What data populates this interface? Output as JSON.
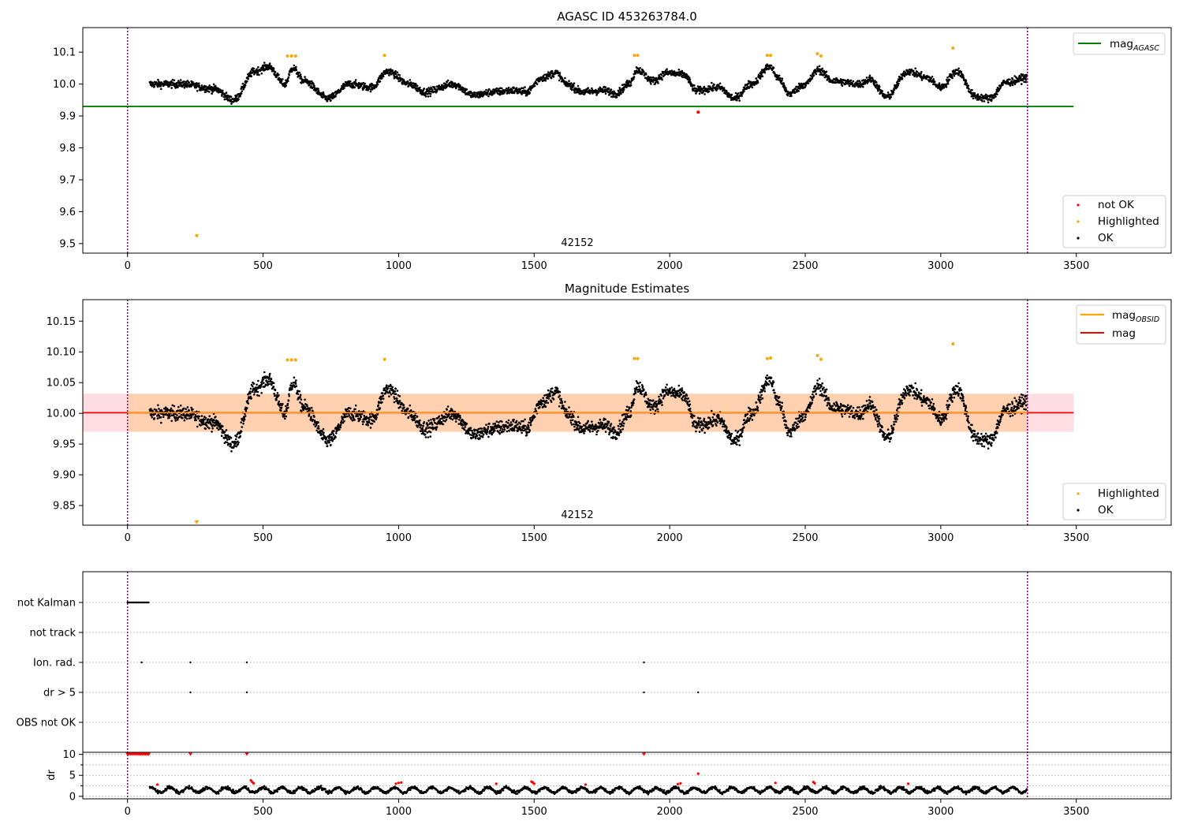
{
  "chart_data": [
    {
      "id": "top",
      "type": "scatter",
      "title": "AGASC ID 453263784.0",
      "xlabel": "",
      "ylabel": "",
      "xlim": [
        -165,
        3850
      ],
      "ylim": [
        9.47,
        10.177
      ],
      "xticks": [
        0,
        500,
        1000,
        1500,
        2000,
        2500,
        3000,
        3500
      ],
      "yticks": [
        9.5,
        9.6,
        9.7,
        9.8,
        9.9,
        10.0,
        10.1
      ],
      "ytick_labels": [
        "9.5",
        "9.6",
        "9.7",
        "9.8",
        "9.9",
        "10.0",
        "10.1"
      ],
      "obsid_annotation": "42152",
      "obs_bounds": [
        0,
        3320
      ],
      "reference_line": {
        "name": "mag",
        "subscript": "AGASC",
        "value": 9.93,
        "x_range": [
          -165,
          3490
        ],
        "color": "#008000"
      },
      "legend_lines": [
        {
          "label": "mag",
          "sub": "AGASC",
          "color": "#008000"
        }
      ],
      "legend_points": [
        {
          "label": "not OK",
          "color": "#ff0000"
        },
        {
          "label": "Highlighted",
          "color": "#ffa500"
        },
        {
          "label": "OK",
          "color": "#000000"
        }
      ],
      "series_description": "OK points (black), ~3200 samples, mag oscillating between ~9.93 and ~10.07 over x 80–3320",
      "highlighted_points": [
        [
          255,
          9.525
        ],
        [
          590,
          10.088
        ],
        [
          605,
          10.088
        ],
        [
          620,
          10.088
        ],
        [
          948,
          10.09
        ],
        [
          1870,
          10.09
        ],
        [
          1882,
          10.09
        ],
        [
          2360,
          10.09
        ],
        [
          2372,
          10.09
        ],
        [
          2545,
          10.095
        ],
        [
          2558,
          10.088
        ],
        [
          3045,
          10.113
        ]
      ],
      "not_ok_points": [
        [
          2105,
          9.912
        ]
      ]
    },
    {
      "id": "mid",
      "type": "scatter",
      "title": "Magnitude Estimates",
      "xlabel": "",
      "ylabel": "",
      "xlim": [
        -165,
        3850
      ],
      "ylim": [
        9.818,
        10.185
      ],
      "xticks": [
        0,
        500,
        1000,
        1500,
        2000,
        2500,
        3000,
        3500
      ],
      "yticks": [
        9.85,
        9.9,
        9.95,
        10.0,
        10.05,
        10.1,
        10.15
      ],
      "ytick_labels": [
        "9.85",
        "9.90",
        "9.95",
        "10.00",
        "10.05",
        "10.10",
        "10.15"
      ],
      "obsid_annotation": "42152",
      "obs_bounds": [
        0,
        3320
      ],
      "mag": 10.001,
      "mag_band": [
        9.97,
        10.032
      ],
      "mag_band_color": "#ffb6c1",
      "mag_obsid_band": [
        9.97,
        10.032
      ],
      "mag_obsid_band_color": "#ffa500",
      "legend_lines": [
        {
          "label": "mag",
          "sub": "OBSID",
          "color": "#ffa500"
        },
        {
          "label": "mag",
          "sub": "",
          "color": "#ff0000"
        }
      ],
      "legend_points": [
        {
          "label": "Highlighted",
          "color": "#ffa500"
        },
        {
          "label": "OK",
          "color": "#000000"
        }
      ],
      "highlighted_points": [
        [
          590,
          10.087
        ],
        [
          605,
          10.087
        ],
        [
          620,
          10.087
        ],
        [
          948,
          10.088
        ],
        [
          1870,
          10.089
        ],
        [
          1882,
          10.089
        ],
        [
          2360,
          10.089
        ],
        [
          2372,
          10.09
        ],
        [
          2545,
          10.094
        ],
        [
          2558,
          10.088
        ],
        [
          3045,
          10.113
        ]
      ],
      "out_of_range_markers": [
        [
          255,
          9.822
        ]
      ]
    },
    {
      "id": "flags",
      "type": "scatter",
      "title": "",
      "xlim": [
        -165,
        3850
      ],
      "categories": [
        "not Kalman",
        "not track",
        "Ion. rad.",
        "dr > 5",
        "OBS not OK"
      ],
      "flag_points": {
        "not Kalman": [
          0,
          8,
          16,
          24,
          32,
          40,
          48,
          56,
          64,
          72
        ],
        "not track": [],
        "Ion. rad.": [
          52,
          232,
          440,
          1905
        ],
        "dr > 5": [
          232,
          440,
          1905,
          2105
        ],
        "OBS not OK": []
      },
      "obs_bounds": [
        0,
        3320
      ]
    },
    {
      "id": "dr",
      "type": "scatter",
      "title": "",
      "ylabel": "dr",
      "xlim": [
        -165,
        3850
      ],
      "ylim": [
        -0.6,
        10.5
      ],
      "xticks": [
        0,
        500,
        1000,
        1500,
        2000,
        2500,
        3000,
        3500
      ],
      "yticks": [
        0,
        5,
        10
      ],
      "ytick_labels": [
        "0",
        "5",
        "10"
      ],
      "obs_bounds": [
        0,
        3320
      ],
      "clipped_points_value": 10,
      "clipped_points_x": [
        0,
        6,
        12,
        18,
        24,
        30,
        36,
        42,
        48,
        54,
        60,
        66,
        72,
        78,
        232,
        440,
        1905
      ],
      "red_points": [
        [
          110,
          2.8
        ],
        [
          455,
          3.8
        ],
        [
          460,
          3.4
        ],
        [
          465,
          3.1
        ],
        [
          990,
          3.0
        ],
        [
          1000,
          3.2
        ],
        [
          1010,
          3.3
        ],
        [
          1360,
          3.0
        ],
        [
          1490,
          3.5
        ],
        [
          1495,
          3.3
        ],
        [
          1500,
          3.0
        ],
        [
          1690,
          2.8
        ],
        [
          2030,
          2.9
        ],
        [
          2040,
          3.1
        ],
        [
          2105,
          5.4
        ],
        [
          2390,
          3.2
        ],
        [
          2530,
          3.4
        ],
        [
          2535,
          3.1
        ],
        [
          2880,
          3.0
        ]
      ],
      "series_description": "OK dr points (black), ~3200 samples, dr between ~0.5 and ~3 over x 80–3320"
    }
  ]
}
